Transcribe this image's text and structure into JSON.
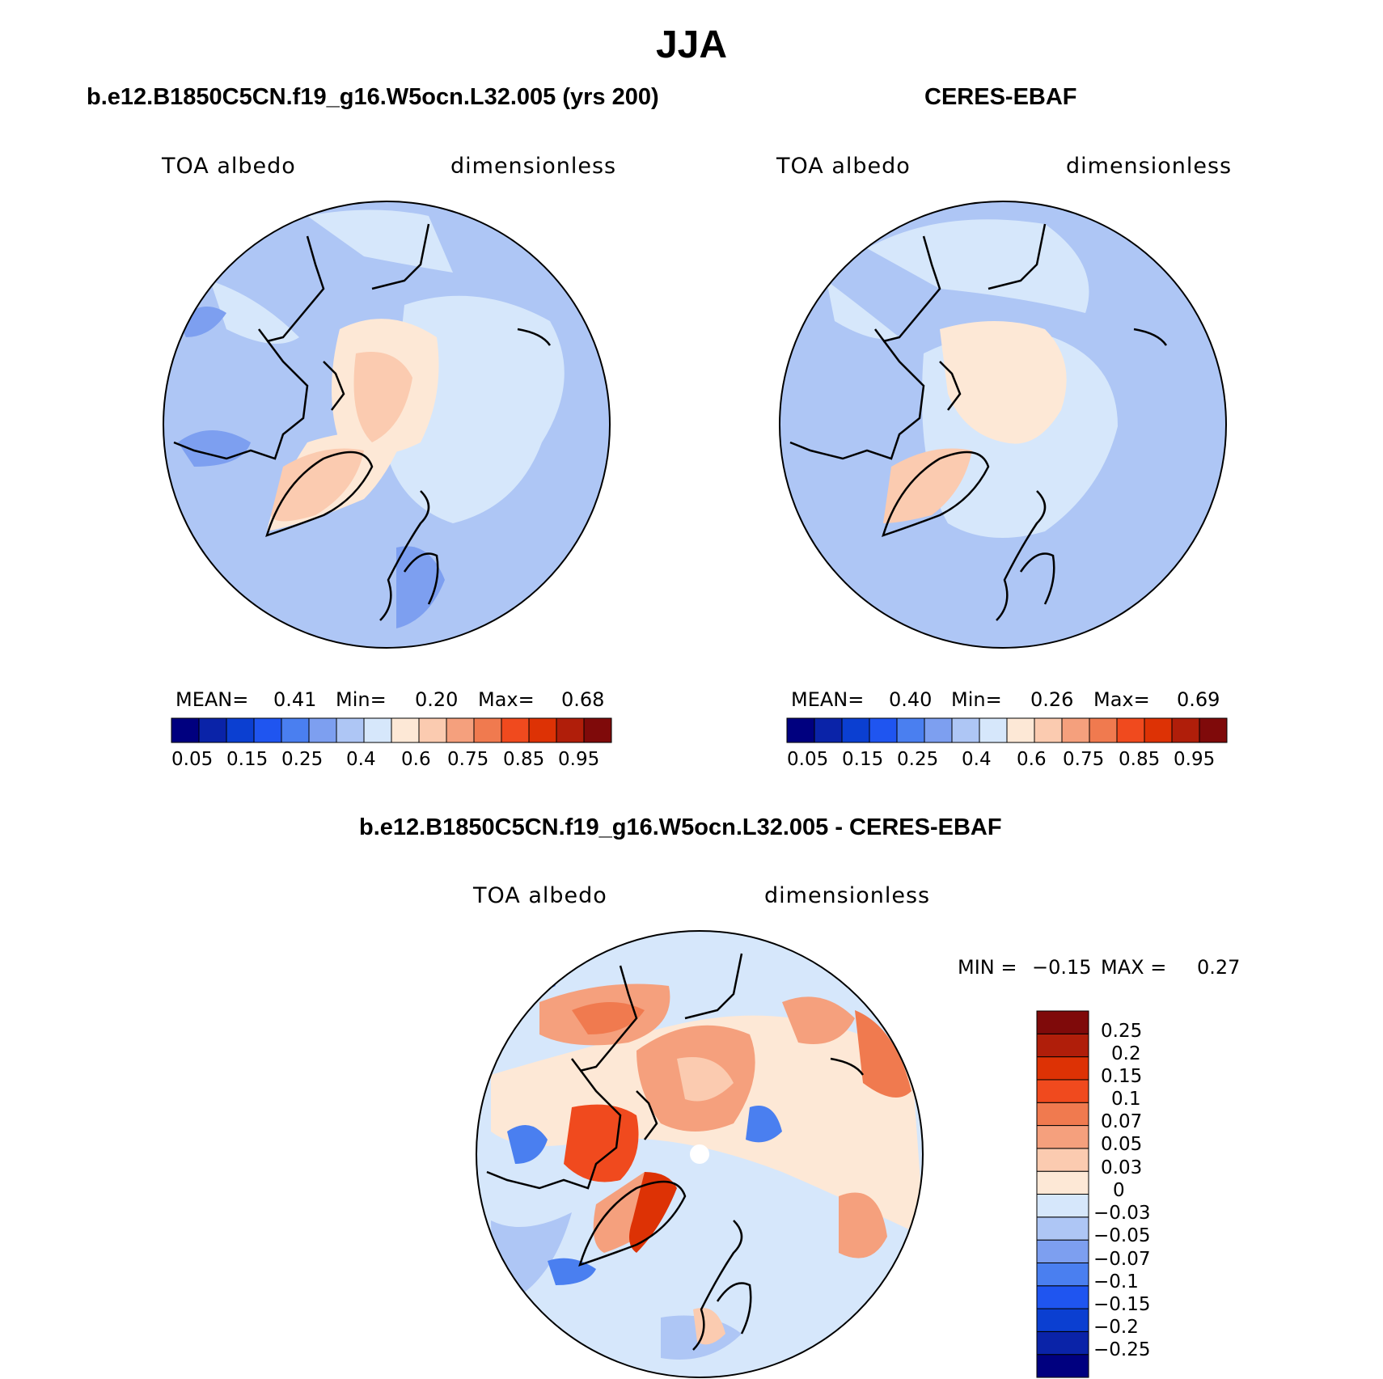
{
  "title": "JJA",
  "panels": [
    {
      "title": "b.e12.B1850C5CN.f19_g16.W5ocn.L32.005 (yrs 200)",
      "left_label": "TOA albedo",
      "right_label": "dimensionless",
      "stats": {
        "mean_label": "MEAN=",
        "mean": "0.41",
        "min_label": "Min=",
        "min": "0.20",
        "max_label": "Max=",
        "max": "0.68"
      }
    },
    {
      "title": "CERES-EBAF",
      "left_label": "TOA albedo",
      "right_label": "dimensionless",
      "stats": {
        "mean_label": "MEAN=",
        "mean": "0.40",
        "min_label": "Min=",
        "min": "0.26",
        "max_label": "Max=",
        "max": "0.69"
      }
    },
    {
      "title": "b.e12.B1850C5CN.f19_g16.W5ocn.L32.005 - CERES-EBAF",
      "left_label": "TOA albedo",
      "right_label": "dimensionless",
      "stats": {
        "min_label": "MIN =",
        "min": "−0.15",
        "max_label": "MAX =",
        "max": "0.27"
      }
    }
  ],
  "colorbar_abs": {
    "colors": [
      "#00007f",
      "#0a23a8",
      "#0b3fd1",
      "#1f55f0",
      "#4a7ff0",
      "#7d9ff0",
      "#aec6f5",
      "#d6e7fb",
      "#fde8d6",
      "#fbcbb0",
      "#f5a07d",
      "#f07a4f",
      "#f04a1e",
      "#dd3205",
      "#b01e0a",
      "#7f0a0a"
    ],
    "tick_labels": [
      "0.05",
      "0.15",
      "0.25",
      "0.4",
      "0.6",
      "0.75",
      "0.85",
      "0.95"
    ]
  },
  "colorbar_diff": {
    "colors": [
      "#00007f",
      "#0a23a8",
      "#0b3fd1",
      "#1f55f0",
      "#4a7ff0",
      "#7d9ff0",
      "#aec6f5",
      "#d6e7fb",
      "#fde8d6",
      "#fbcbb0",
      "#f5a07d",
      "#f07a4f",
      "#f04a1e",
      "#dd3205",
      "#b01e0a",
      "#7f0a0a"
    ],
    "tick_labels": [
      "−0.25",
      "−0.2",
      "−0.15",
      "−0.1",
      "−0.07",
      "−0.05",
      "−0.03",
      "0",
      "0.03",
      "0.05",
      "0.07",
      "0.1",
      "0.15",
      "0.2",
      "0.25"
    ]
  }
}
